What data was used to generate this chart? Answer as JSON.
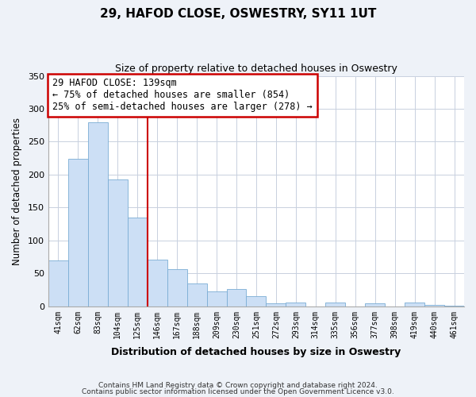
{
  "title": "29, HAFOD CLOSE, OSWESTRY, SY11 1UT",
  "subtitle": "Size of property relative to detached houses in Oswestry",
  "xlabel": "Distribution of detached houses by size in Oswestry",
  "ylabel": "Number of detached properties",
  "bar_color": "#ccdff5",
  "bar_edge_color": "#7aadd4",
  "categories": [
    "41sqm",
    "62sqm",
    "83sqm",
    "104sqm",
    "125sqm",
    "146sqm",
    "167sqm",
    "188sqm",
    "209sqm",
    "230sqm",
    "251sqm",
    "272sqm",
    "293sqm",
    "314sqm",
    "335sqm",
    "356sqm",
    "377sqm",
    "398sqm",
    "419sqm",
    "440sqm",
    "461sqm"
  ],
  "values": [
    70,
    224,
    280,
    193,
    135,
    71,
    57,
    35,
    23,
    26,
    15,
    5,
    6,
    0,
    6,
    0,
    5,
    0,
    6,
    2,
    1
  ],
  "ylim": [
    0,
    350
  ],
  "yticks": [
    0,
    50,
    100,
    150,
    200,
    250,
    300,
    350
  ],
  "vline_color": "#cc0000",
  "annotation_title": "29 HAFOD CLOSE: 139sqm",
  "annotation_line1": "← 75% of detached houses are smaller (854)",
  "annotation_line2": "25% of semi-detached houses are larger (278) →",
  "footer1": "Contains HM Land Registry data © Crown copyright and database right 2024.",
  "footer2": "Contains public sector information licensed under the Open Government Licence v3.0.",
  "background_color": "#eef2f8",
  "grid_color": "#c8d0de"
}
